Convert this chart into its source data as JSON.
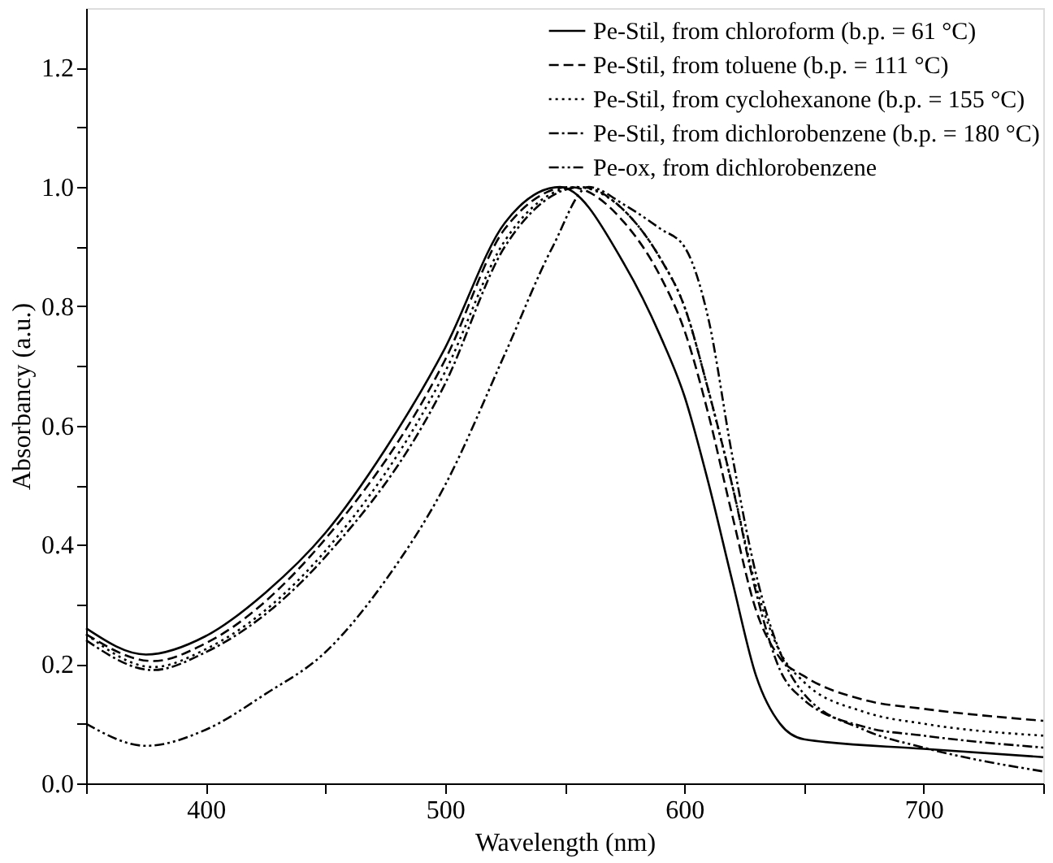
{
  "chart_data": {
    "type": "line",
    "xlabel": "Wavelength (nm)",
    "ylabel": "Absorbancy (a.u.)",
    "xlim": [
      350,
      750
    ],
    "ylim": [
      0,
      1.3
    ],
    "xticks": [
      {
        "value": 350,
        "label": null
      },
      400,
      {
        "value": 450,
        "label": null
      },
      500,
      {
        "value": 550,
        "label": null
      },
      600,
      {
        "value": 650,
        "label": null
      },
      700,
      {
        "value": 750,
        "label": null
      }
    ],
    "yticks": [
      {
        "value": 0,
        "label": "0.0"
      },
      {
        "value": 0.1,
        "label": null
      },
      {
        "value": 0.2,
        "label": "0.2"
      },
      {
        "value": 0.3,
        "label": null
      },
      {
        "value": 0.4,
        "label": "0.4"
      },
      {
        "value": 0.5,
        "label": null
      },
      {
        "value": 0.6,
        "label": "0.6"
      },
      {
        "value": 0.7,
        "label": null
      },
      {
        "value": 0.8,
        "label": "0.8"
      },
      {
        "value": 0.9,
        "label": null
      },
      {
        "value": 1,
        "label": "1.0"
      },
      {
        "value": 1.1,
        "label": null
      },
      {
        "value": 1.2,
        "label": "1.2"
      }
    ],
    "grid": false,
    "legend": "top right",
    "marker": "none",
    "series": [
      {
        "name": "Pe-Stil, from chloroform (b.p. = 61 °C)",
        "color": "#000000",
        "line_style": "solid",
        "x": [
          350,
          375,
          400,
          425,
          450,
          475,
          500,
          525,
          548,
          575,
          590,
          600,
          610,
          620,
          630,
          640,
          650,
          700,
          750
        ],
        "values": [
          0.26,
          0.216,
          0.247,
          0.32,
          0.42,
          0.56,
          0.73,
          0.94,
          1.0,
          0.87,
          0.75,
          0.65,
          0.505,
          0.34,
          0.18,
          0.1,
          0.074,
          0.058,
          0.044
        ]
      },
      {
        "name": "Pe-Stil, from toluene (b.p. = 111 °C)",
        "color": "#000000",
        "line_style": "dashed",
        "x": [
          350,
          378,
          400,
          450,
          500,
          525,
          552,
          575,
          590,
          600,
          610,
          620,
          630,
          640,
          650,
          675,
          700,
          750
        ],
        "values": [
          0.25,
          0.205,
          0.235,
          0.41,
          0.71,
          0.93,
          1.0,
          0.94,
          0.85,
          0.76,
          0.62,
          0.45,
          0.29,
          0.21,
          0.18,
          0.14,
          0.125,
          0.105
        ]
      },
      {
        "name": "Pe-Stil, from cyclohexanone (b.p. = 155 °C)",
        "color": "#000000",
        "line_style": "dotted",
        "x": [
          350,
          378,
          400,
          450,
          500,
          525,
          555,
          575,
          590,
          600,
          610,
          620,
          630,
          640,
          650,
          675,
          700,
          750
        ],
        "values": [
          0.25,
          0.195,
          0.225,
          0.39,
          0.69,
          0.91,
          1.0,
          0.96,
          0.88,
          0.8,
          0.66,
          0.5,
          0.33,
          0.22,
          0.17,
          0.12,
          0.1,
          0.08
        ]
      },
      {
        "name": "Pe-Stil, from dichlorobenzene (b.p. = 180 °C)",
        "color": "#000000",
        "line_style": "dashdot",
        "x": [
          350,
          378,
          400,
          450,
          500,
          525,
          557,
          575,
          590,
          600,
          610,
          620,
          630,
          640,
          650,
          675,
          700,
          750
        ],
        "values": [
          0.24,
          0.19,
          0.22,
          0.38,
          0.67,
          0.9,
          1.0,
          0.96,
          0.88,
          0.8,
          0.66,
          0.5,
          0.32,
          0.19,
          0.14,
          0.095,
          0.08,
          0.06
        ]
      },
      {
        "name": "Pe-ox, from dichlorobenzene",
        "color": "#000000",
        "line_style": "dashdotdot",
        "x": [
          350,
          375,
          400,
          425,
          450,
          475,
          500,
          525,
          545,
          560,
          575,
          590,
          600,
          610,
          620,
          630,
          640,
          650,
          675,
          700,
          750
        ],
        "values": [
          0.1,
          0.063,
          0.09,
          0.15,
          0.22,
          0.34,
          0.5,
          0.72,
          0.9,
          1.0,
          0.97,
          0.93,
          0.9,
          0.78,
          0.55,
          0.35,
          0.22,
          0.15,
          0.09,
          0.06,
          0.02
        ]
      }
    ]
  }
}
